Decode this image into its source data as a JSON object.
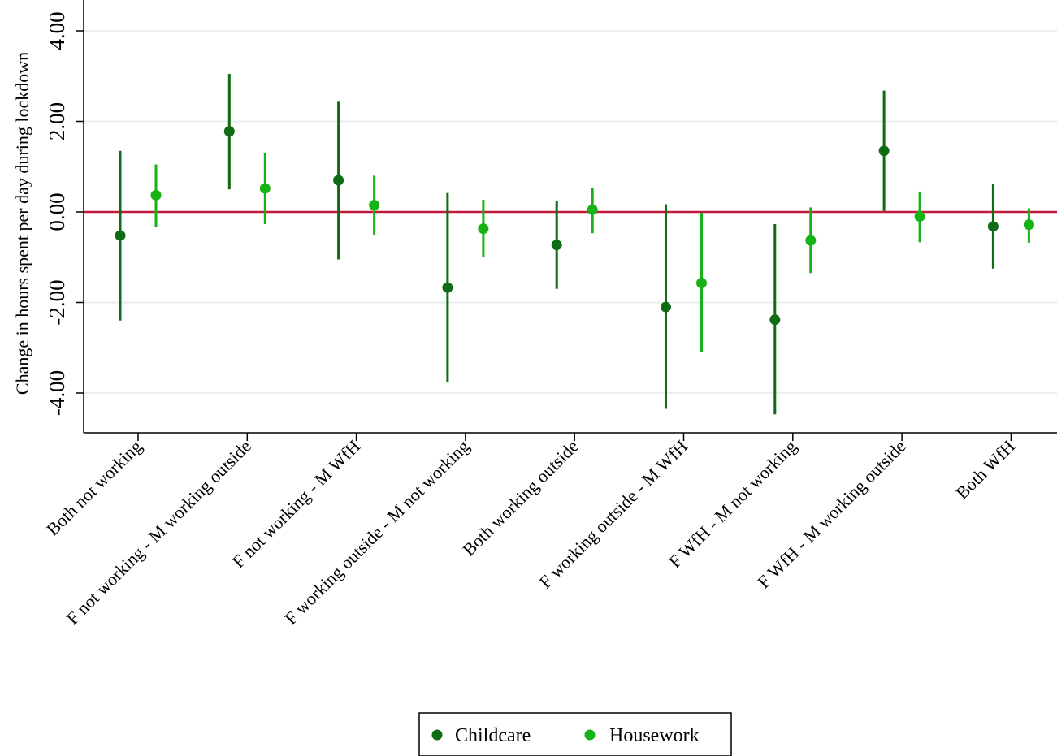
{
  "chart_data": {
    "type": "scatter",
    "ylabel": "Change in hours spent per day during lockdown",
    "xlabel": "",
    "ylim": [
      -4.8,
      4.0
    ],
    "yticks": [
      4,
      2,
      0,
      -2,
      -4
    ],
    "ytick_labels": [
      "4.00",
      "2.00",
      "0.00",
      "-2.00",
      "-4.00"
    ],
    "reference_line": 0,
    "grid": true,
    "legend_position": "bottom-center",
    "categories": [
      "Both not working",
      "F not working - M working outside",
      "F not working - M WfH",
      "F working outside - M not working",
      "Both working outside",
      "F working outside - M WfH",
      "F WfH - M not working",
      "F WfH - M working outside",
      "Both WfH"
    ],
    "series": [
      {
        "name": "Childcare",
        "values": [
          -0.52,
          1.78,
          0.7,
          -1.67,
          -0.73,
          -2.1,
          -2.38,
          1.35,
          -0.32
        ],
        "ci_low": [
          -2.4,
          0.5,
          -1.05,
          -3.77,
          -1.7,
          -4.35,
          -4.47,
          0.02,
          -1.25
        ],
        "ci_high": [
          1.35,
          3.05,
          2.45,
          0.42,
          0.25,
          0.17,
          -0.27,
          2.68,
          0.62
        ]
      },
      {
        "name": "Housework",
        "values": [
          0.37,
          0.52,
          0.15,
          -0.37,
          0.05,
          -1.57,
          -0.63,
          -0.1,
          -0.28
        ],
        "ci_low": [
          -0.33,
          -0.27,
          -0.52,
          -1.0,
          -0.47,
          -3.1,
          -1.35,
          -0.67,
          -0.68
        ],
        "ci_high": [
          1.05,
          1.3,
          0.8,
          0.27,
          0.53,
          -0.02,
          0.1,
          0.45,
          0.08
        ]
      }
    ],
    "colors": {
      "Childcare": "#0f6b14",
      "Housework": "#16b216",
      "reference_line": "#c2183c",
      "grid": "#e6eef0",
      "axis": "#000000"
    }
  }
}
